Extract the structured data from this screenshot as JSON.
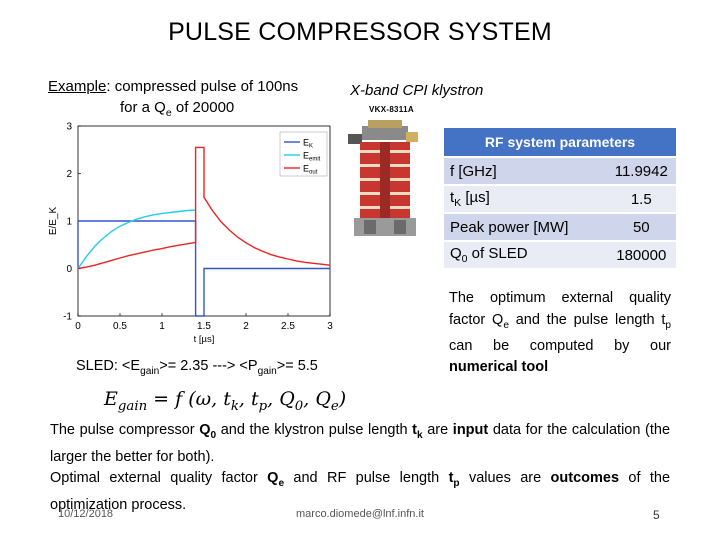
{
  "title": "PULSE COMPRESSOR SYSTEM",
  "example": {
    "label": "Example",
    "line1_rest": ": compressed pulse of 100ns",
    "line2_prefix": "for a Q",
    "line2_sub": "e",
    "line2_suffix": " of 20000"
  },
  "klystron": {
    "caption": "X-band CPI klystron",
    "model": "VKX-8311A"
  },
  "rf_table": {
    "header": "RF system parameters",
    "rows": [
      {
        "param_main": "f [GHz]",
        "param_sub": "",
        "param_tail": "",
        "value": "11.9942"
      },
      {
        "param_main": "t",
        "param_sub": "K",
        "param_tail": " [µs]",
        "value": "1.5"
      },
      {
        "param_main": "Peak power [MW]",
        "param_sub": "",
        "param_tail": "",
        "value": "50"
      },
      {
        "param_main": "Q",
        "param_sub": "0",
        "param_tail": " of SLED",
        "value": "180000"
      }
    ]
  },
  "optimum": {
    "t1": "The optimum external quality factor Q",
    "t1_sub": "e",
    "t2": " and the pulse length t",
    "t2_sub": "p",
    "t3": " can be computed by our ",
    "t3_bold": "numerical tool"
  },
  "sled": {
    "prefix": "SLED: <E",
    "sub1": "gain",
    "mid": ">= 2.35 ---> <P",
    "sub2": "gain",
    "suffix": ">= 5.5"
  },
  "egain_formula": {
    "lhs": "E",
    "lhs_sub": "gain",
    "rhs": " = f (ω, t",
    "rhs_sub1": "k",
    "rhs_mid1": ", t",
    "rhs_sub2": "p",
    "rhs_mid2": ", Q",
    "rhs_sub3": "0",
    "rhs_mid3": ", Q",
    "rhs_sub4": "e",
    "rhs_end": ")"
  },
  "body": {
    "p1a": "The pulse compressor ",
    "p1b": "Q",
    "p1b_sub": "0",
    "p1c": " and the klystron pulse length ",
    "p1d": "t",
    "p1d_sub": "k",
    "p1e": " are ",
    "p1f": "input",
    "p1g": " data for the calculation (the larger the better for both).",
    "p2a": "Optimal external quality factor ",
    "p2b": "Q",
    "p2b_sub": "e",
    "p2c": " and RF pulse length ",
    "p2d": "t",
    "p2d_sub": "p",
    "p2e": " values are ",
    "p2f": "outcomes",
    "p2g": " of the optimization process."
  },
  "footer": {
    "date": "10/12/2018",
    "email": "marco.diomede@lnf.infn.it",
    "page": "5"
  },
  "chart_data": {
    "type": "line",
    "title": "",
    "xlabel": "t [µs]",
    "ylabel": "E/E_K",
    "xlim": [
      0,
      3
    ],
    "ylim": [
      -1,
      3
    ],
    "xticks": [
      "0",
      "0.5",
      "1",
      "1.5",
      "2",
      "2.5",
      "3"
    ],
    "yticks": [
      "-1",
      "0",
      "1",
      "2",
      "3"
    ],
    "legend": {
      "placement": "top-right",
      "entries": [
        {
          "base": "E",
          "sub": "K"
        },
        {
          "base": "E",
          "sub": "emit"
        },
        {
          "base": "E",
          "sub": "out"
        }
      ]
    },
    "series": [
      {
        "color": "#3355cc",
        "x": [
          0,
          0,
          1.4,
          1.4,
          1.5,
          1.5,
          3
        ],
        "y": [
          0,
          1,
          1,
          -1,
          -1,
          0,
          0
        ]
      },
      {
        "color": "#22ccee",
        "x": [
          0,
          0.1,
          0.2,
          0.3,
          0.4,
          0.5,
          0.6,
          0.7,
          0.8,
          0.9,
          1.0,
          1.1,
          1.2,
          1.3,
          1.4
        ],
        "y": [
          0,
          0.25,
          0.47,
          0.64,
          0.78,
          0.89,
          0.97,
          1.04,
          1.09,
          1.13,
          1.16,
          1.18,
          1.2,
          1.22,
          1.23
        ]
      },
      {
        "color": "#ee2222",
        "x": [
          0,
          0.1,
          0.2,
          0.3,
          0.4,
          0.5,
          0.6,
          0.7,
          0.8,
          0.9,
          1.0,
          1.1,
          1.2,
          1.3,
          1.4,
          1.4,
          1.5,
          1.5,
          1.6,
          1.7,
          1.8,
          1.9,
          2.0,
          2.1,
          2.2,
          2.3,
          2.4,
          2.5,
          2.6,
          2.7,
          2.8,
          2.9,
          3.0
        ],
        "y": [
          0,
          0.03,
          0.07,
          0.12,
          0.17,
          0.22,
          0.27,
          0.31,
          0.35,
          0.39,
          0.42,
          0.46,
          0.49,
          0.52,
          0.55,
          2.55,
          2.55,
          1.5,
          1.22,
          0.99,
          0.81,
          0.66,
          0.54,
          0.44,
          0.36,
          0.29,
          0.24,
          0.2,
          0.16,
          0.13,
          0.11,
          0.09,
          0.07
        ]
      }
    ]
  }
}
